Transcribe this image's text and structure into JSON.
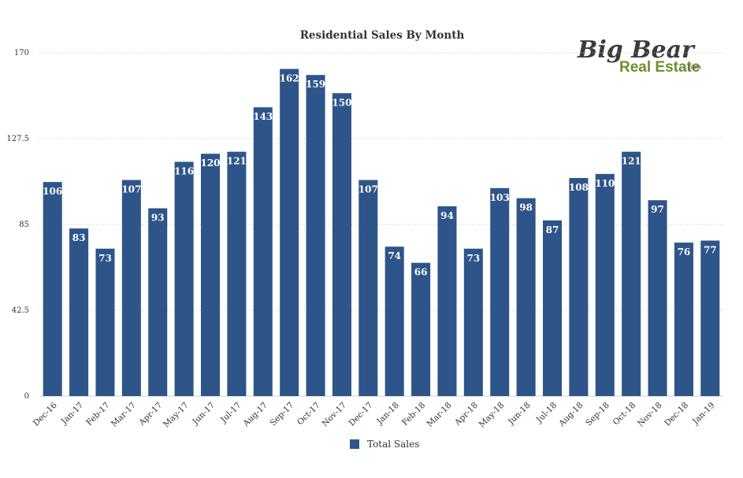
{
  "chart_data": {
    "type": "bar",
    "title": "Residential Sales By Month",
    "categories": [
      "Dec-16",
      "Jan-17",
      "Feb-17",
      "Mar-17",
      "Apr-17",
      "May-17",
      "Jun-17",
      "Jul-17",
      "Aug-17",
      "Sep-17",
      "Oct-17",
      "Nov-17",
      "Dec-17",
      "Jan-18",
      "Feb-18",
      "Mar-18",
      "Apr-18",
      "May-18",
      "Jun-18",
      "Jul-18",
      "Aug-18",
      "Sep-18",
      "Oct-18",
      "Nov-18",
      "Dec-18",
      "Jan-19"
    ],
    "series": [
      {
        "name": "Total Sales",
        "color": "#2e558a",
        "values": [
          106,
          83,
          73,
          107,
          93,
          116,
          120,
          121,
          143,
          162,
          159,
          150,
          107,
          74,
          66,
          94,
          73,
          103,
          98,
          87,
          108,
          110,
          121,
          97,
          76,
          77
        ]
      }
    ],
    "ylim": [
      0,
      170
    ],
    "yticks": [
      0,
      42.5,
      85,
      127.5,
      170
    ],
    "ytick_labels": [
      "0",
      "42.5",
      "85",
      "127.5",
      "170"
    ],
    "grid": true,
    "legend": "bottom-center",
    "data_labels": true
  },
  "logo": {
    "top_text": "Big Bear",
    "bottom_text": "Real Estate",
    "suffix": ".com"
  }
}
